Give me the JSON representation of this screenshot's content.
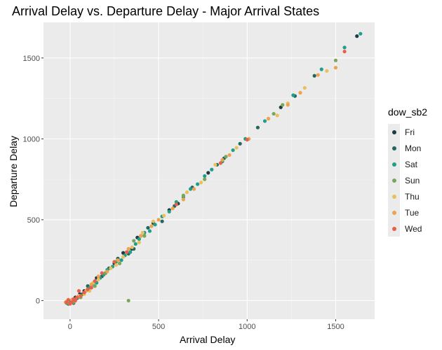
{
  "chart_data": {
    "type": "scatter",
    "title": "Arrival Delay vs. Departure Delay - Major Arrival States",
    "xlabel": "Arrival Delay",
    "ylabel": "Departure Delay",
    "xlim": [
      -150,
      1720
    ],
    "ylim": [
      -115,
      1720
    ],
    "xticks": [
      0,
      500,
      1000,
      1500
    ],
    "yticks": [
      0,
      500,
      1000,
      1500
    ],
    "xtick_labels": [
      "0",
      "500",
      "1000",
      "1500"
    ],
    "ytick_labels": [
      "0",
      "500",
      "1000",
      "1500"
    ],
    "grid": true,
    "legend_title": "dow_sb2",
    "legend_position": "right",
    "series": [
      {
        "name": "Fri",
        "color": "#1f3a44",
        "values": [
          [
            1620,
            1635
          ],
          [
            1190,
            1195
          ],
          [
            780,
            790
          ],
          [
            610,
            600
          ],
          [
            470,
            480
          ],
          [
            380,
            390
          ],
          [
            300,
            295
          ],
          [
            250,
            230
          ],
          [
            200,
            170
          ],
          [
            150,
            140
          ],
          [
            120,
            80
          ],
          [
            80,
            60
          ],
          [
            55,
            40
          ],
          [
            30,
            20
          ],
          [
            10,
            0
          ],
          [
            -5,
            -5
          ],
          [
            560,
            560
          ],
          [
            350,
            320
          ]
        ]
      },
      {
        "name": "Mon",
        "color": "#23655f",
        "values": [
          [
            1380,
            1390
          ],
          [
            1270,
            1265
          ],
          [
            1060,
            1070
          ],
          [
            960,
            970
          ],
          [
            870,
            880
          ],
          [
            830,
            840
          ],
          [
            690,
            700
          ],
          [
            590,
            585
          ],
          [
            520,
            490
          ],
          [
            440,
            450
          ],
          [
            400,
            400
          ],
          [
            360,
            320
          ],
          [
            330,
            290
          ],
          [
            270,
            260
          ],
          [
            220,
            200
          ],
          [
            180,
            150
          ],
          [
            140,
            120
          ],
          [
            100,
            90
          ],
          [
            70,
            40
          ],
          [
            40,
            15
          ],
          [
            20,
            -15
          ],
          [
            -10,
            -20
          ]
        ]
      },
      {
        "name": "Sat",
        "color": "#1f9e89",
        "values": [
          [
            1640,
            1650
          ],
          [
            1550,
            1565
          ],
          [
            1420,
            1430
          ],
          [
            1260,
            1270
          ],
          [
            1100,
            1110
          ],
          [
            990,
            1000
          ],
          [
            920,
            930
          ],
          [
            860,
            860
          ],
          [
            800,
            810
          ],
          [
            760,
            770
          ],
          [
            720,
            720
          ],
          [
            680,
            690
          ],
          [
            640,
            640
          ],
          [
            600,
            610
          ],
          [
            560,
            550
          ],
          [
            520,
            520
          ],
          [
            480,
            470
          ],
          [
            450,
            430
          ],
          [
            420,
            420
          ],
          [
            390,
            380
          ],
          [
            370,
            350
          ],
          [
            340,
            300
          ],
          [
            310,
            280
          ],
          [
            290,
            250
          ],
          [
            260,
            240
          ],
          [
            240,
            210
          ],
          [
            210,
            190
          ],
          [
            190,
            160
          ],
          [
            170,
            140
          ],
          [
            150,
            110
          ],
          [
            130,
            100
          ],
          [
            110,
            80
          ],
          [
            90,
            60
          ],
          [
            60,
            30
          ],
          [
            30,
            10
          ],
          [
            0,
            -10
          ],
          [
            -20,
            -15
          ]
        ]
      },
      {
        "name": "Sun",
        "color": "#7aa65a",
        "values": [
          [
            1500,
            1485
          ],
          [
            1200,
            1210
          ],
          [
            1150,
            1155
          ],
          [
            880,
            890
          ],
          [
            760,
            750
          ],
          [
            640,
            650
          ],
          [
            420,
            400
          ],
          [
            360,
            370
          ],
          [
            330,
            0
          ],
          [
            280,
            230
          ],
          [
            200,
            170
          ],
          [
            140,
            90
          ],
          [
            100,
            70
          ],
          [
            60,
            20
          ],
          [
            20,
            -10
          ],
          [
            -10,
            -15
          ]
        ]
      },
      {
        "name": "Thu",
        "color": "#e8c15d",
        "values": [
          [
            1450,
            1420
          ],
          [
            1325,
            1315
          ],
          [
            1230,
            1220
          ],
          [
            1170,
            1145
          ],
          [
            940,
            945
          ],
          [
            820,
            840
          ],
          [
            740,
            730
          ],
          [
            660,
            670
          ],
          [
            530,
            525
          ],
          [
            470,
            490
          ],
          [
            410,
            420
          ],
          [
            390,
            360
          ],
          [
            350,
            330
          ],
          [
            320,
            300
          ],
          [
            300,
            270
          ],
          [
            260,
            220
          ],
          [
            230,
            200
          ],
          [
            160,
            130
          ],
          [
            130,
            110
          ],
          [
            110,
            60
          ],
          [
            80,
            40
          ],
          [
            50,
            30
          ],
          [
            -20,
            -5
          ]
        ]
      },
      {
        "name": "Tue",
        "color": "#eda24f",
        "values": [
          [
            1500,
            1440
          ],
          [
            1400,
            1395
          ],
          [
            1300,
            1285
          ],
          [
            1230,
            1210
          ],
          [
            1120,
            1125
          ],
          [
            1010,
            1000
          ],
          [
            900,
            900
          ],
          [
            860,
            870
          ],
          [
            700,
            690
          ],
          [
            640,
            625
          ],
          [
            580,
            570
          ],
          [
            500,
            500
          ],
          [
            460,
            460
          ],
          [
            400,
            400
          ],
          [
            330,
            320
          ],
          [
            270,
            250
          ],
          [
            210,
            180
          ],
          [
            160,
            150
          ],
          [
            120,
            100
          ],
          [
            90,
            60
          ],
          [
            40,
            20
          ],
          [
            10,
            5
          ],
          [
            -25,
            -10
          ]
        ]
      },
      {
        "name": "Wed",
        "color": "#e8604c",
        "values": [
          [
            1550,
            1540
          ],
          [
            1000,
            995
          ],
          [
            850,
            850
          ],
          [
            600,
            595
          ],
          [
            320,
            300
          ],
          [
            250,
            240
          ],
          [
            180,
            170
          ],
          [
            140,
            120
          ],
          [
            120,
            80
          ],
          [
            100,
            70
          ],
          [
            80,
            50
          ],
          [
            60,
            30
          ],
          [
            40,
            20
          ],
          [
            30,
            0
          ],
          [
            20,
            10
          ],
          [
            10,
            -10
          ],
          [
            0,
            -20
          ],
          [
            -10,
            5
          ],
          [
            -20,
            -10
          ],
          [
            50,
            60
          ]
        ]
      }
    ]
  }
}
